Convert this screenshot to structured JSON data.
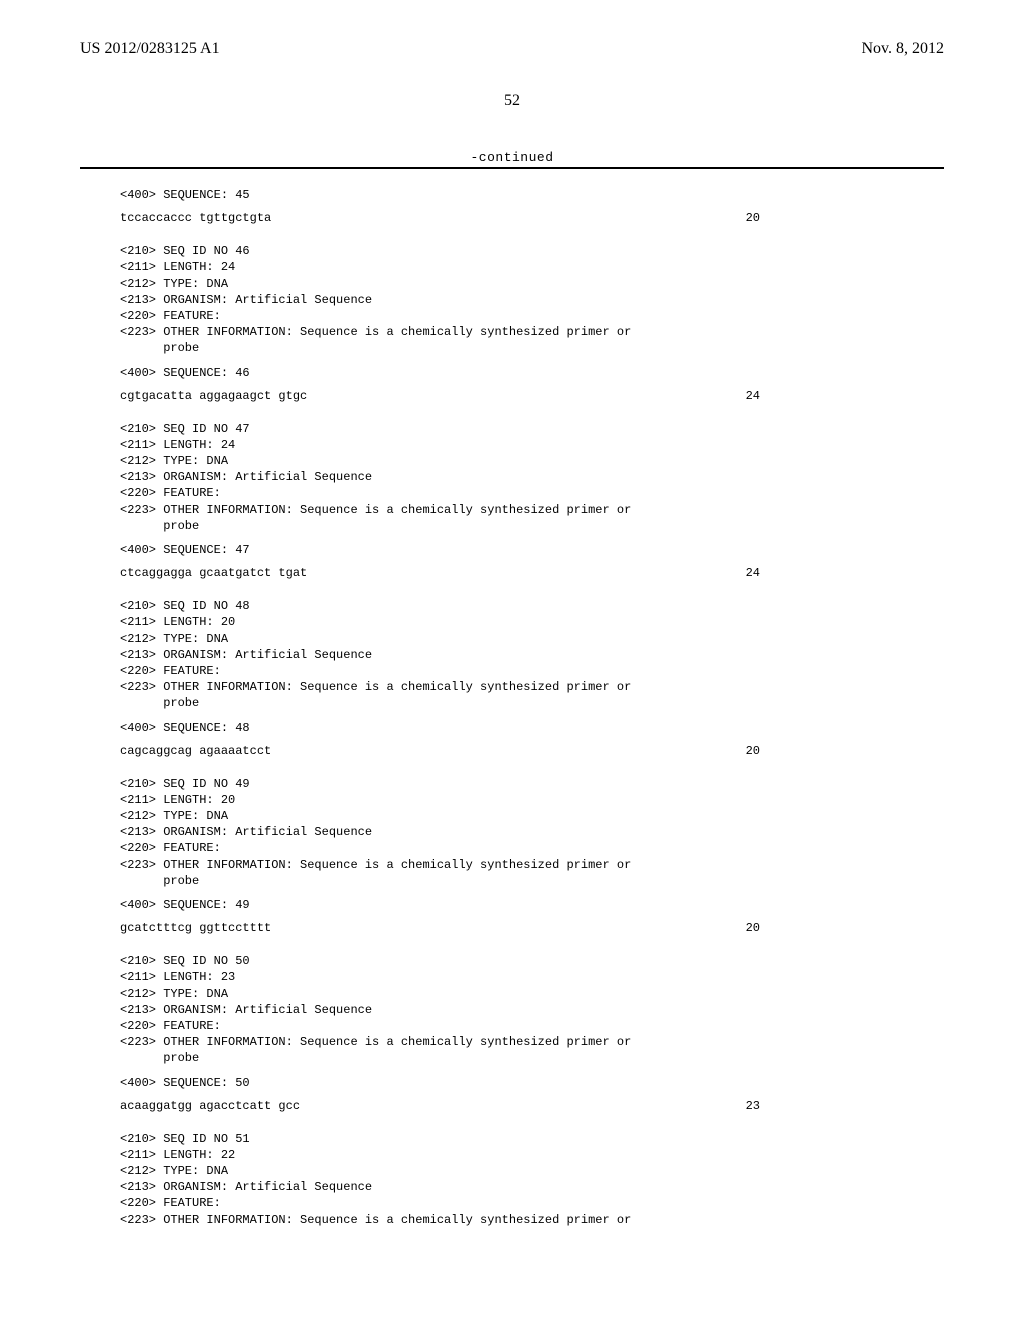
{
  "header": {
    "publication_number": "US 2012/0283125 A1",
    "publication_date": "Nov. 8, 2012",
    "page_number": "52",
    "continued_label": "-continued"
  },
  "intro": {
    "seq400": "<400> SEQUENCE: 45",
    "seq": "tccaccaccc tgttgctgta",
    "len": "20"
  },
  "entries": [
    {
      "id": "46",
      "length": "24",
      "type": "DNA",
      "organism": "Artificial Sequence",
      "feature": "",
      "other_info_a": "<223> OTHER INFORMATION: Sequence is a chemically synthesized primer or",
      "other_info_b": "      probe",
      "seq400": "<400> SEQUENCE: 46",
      "seq": "cgtgacatta aggagaagct gtgc",
      "len": "24"
    },
    {
      "id": "47",
      "length": "24",
      "type": "DNA",
      "organism": "Artificial Sequence",
      "feature": "",
      "other_info_a": "<223> OTHER INFORMATION: Sequence is a chemically synthesized primer or",
      "other_info_b": "      probe",
      "seq400": "<400> SEQUENCE: 47",
      "seq": "ctcaggagga gcaatgatct tgat",
      "len": "24"
    },
    {
      "id": "48",
      "length": "20",
      "type": "DNA",
      "organism": "Artificial Sequence",
      "feature": "",
      "other_info_a": "<223> OTHER INFORMATION: Sequence is a chemically synthesized primer or",
      "other_info_b": "      probe",
      "seq400": "<400> SEQUENCE: 48",
      "seq": "cagcaggcag agaaaatcct",
      "len": "20"
    },
    {
      "id": "49",
      "length": "20",
      "type": "DNA",
      "organism": "Artificial Sequence",
      "feature": "",
      "other_info_a": "<223> OTHER INFORMATION: Sequence is a chemically synthesized primer or",
      "other_info_b": "      probe",
      "seq400": "<400> SEQUENCE: 49",
      "seq": "gcatctttcg ggttcctttt",
      "len": "20"
    },
    {
      "id": "50",
      "length": "23",
      "type": "DNA",
      "organism": "Artificial Sequence",
      "feature": "",
      "other_info_a": "<223> OTHER INFORMATION: Sequence is a chemically synthesized primer or",
      "other_info_b": "      probe",
      "seq400": "<400> SEQUENCE: 50",
      "seq": "acaaggatgg agacctcatt gcc",
      "len": "23"
    }
  ],
  "tail": {
    "id": "51",
    "length": "22",
    "type": "DNA",
    "organism": "Artificial Sequence",
    "feature": "",
    "other_info_a": "<223> OTHER INFORMATION: Sequence is a chemically synthesized primer or"
  },
  "labels": {
    "seqid_prefix": "<210> SEQ ID NO ",
    "length_prefix": "<211> LENGTH: ",
    "type_prefix": "<212> TYPE: ",
    "organism_prefix": "<213> ORGANISM: ",
    "feature_prefix": "<220> FEATURE:"
  }
}
